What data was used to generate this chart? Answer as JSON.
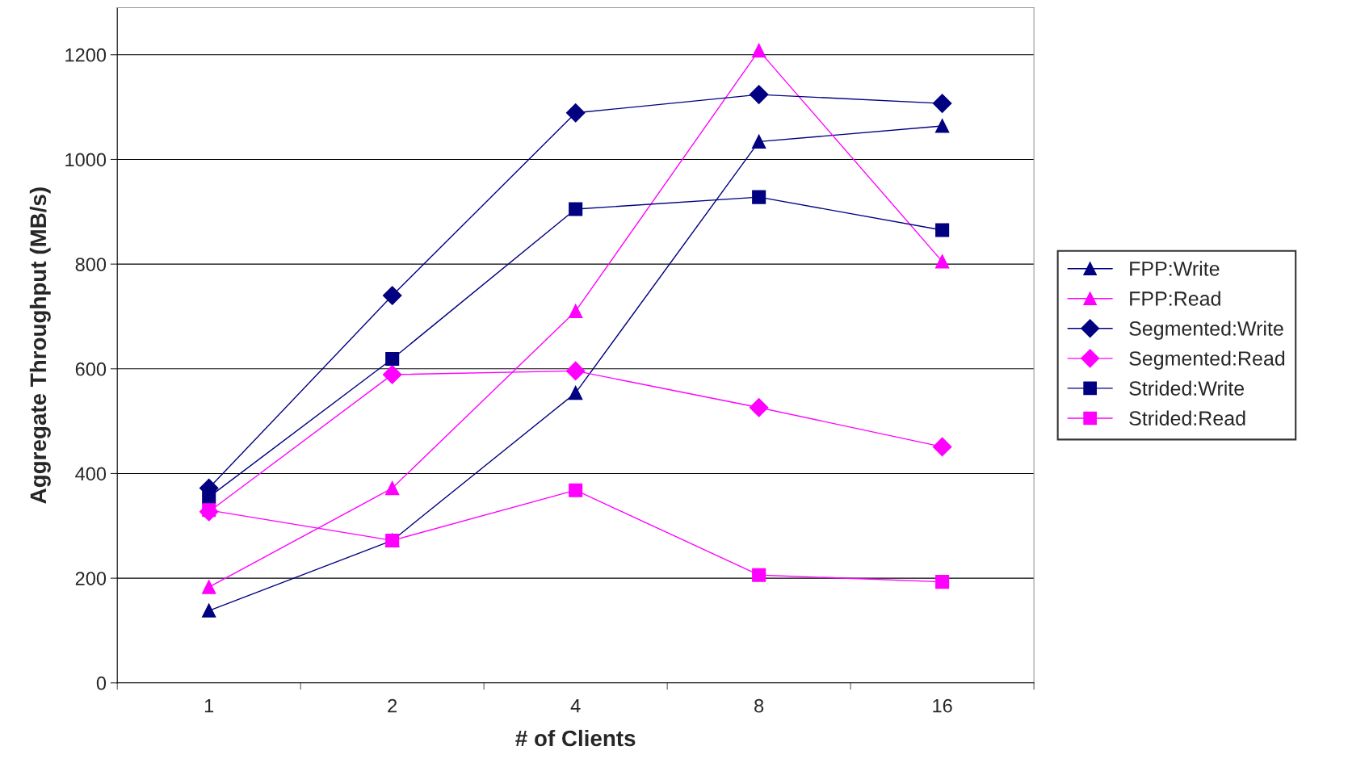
{
  "chart_data": {
    "type": "line",
    "xlabel": "# of Clients",
    "ylabel": "Aggregate Throughput (MB/s)",
    "categories": [
      "1",
      "2",
      "4",
      "8",
      "16"
    ],
    "series": [
      {
        "name": "FPP:Write",
        "color": "#000080",
        "marker": "triangle",
        "values": [
          138,
          272,
          554,
          1034,
          1064
        ]
      },
      {
        "name": "FPP:Read",
        "color": "#ff00ff",
        "marker": "triangle",
        "values": [
          183,
          372,
          710,
          1208,
          805
        ]
      },
      {
        "name": "Segmented:Write",
        "color": "#000080",
        "marker": "diamond",
        "values": [
          372,
          740,
          1089,
          1124,
          1107
        ]
      },
      {
        "name": "Segmented:Read",
        "color": "#ff00ff",
        "marker": "diamond",
        "values": [
          327,
          589,
          596,
          526,
          451
        ]
      },
      {
        "name": "Strided:Write",
        "color": "#000080",
        "marker": "square",
        "values": [
          355,
          619,
          905,
          928,
          865
        ]
      },
      {
        "name": "Strided:Read",
        "color": "#ff00ff",
        "marker": "square",
        "values": [
          330,
          272,
          368,
          206,
          193
        ]
      }
    ],
    "ylim": [
      0,
      1290
    ],
    "yticks": [
      0,
      200,
      400,
      600,
      800,
      1000,
      1200
    ],
    "grid": "y",
    "legend": "right"
  }
}
